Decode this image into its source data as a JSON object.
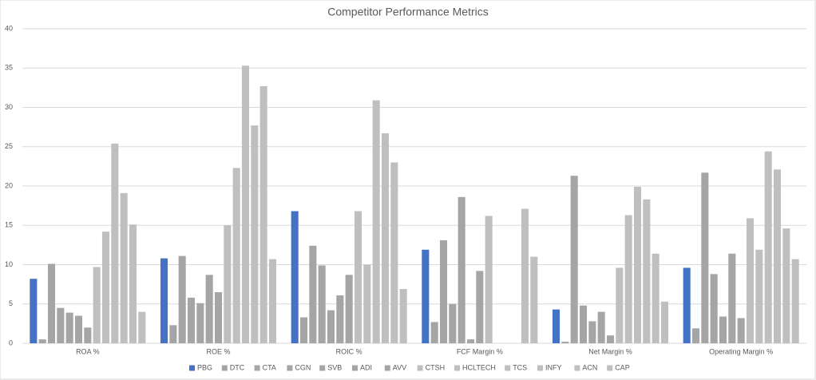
{
  "chart_data": {
    "type": "bar",
    "title": "Competitor Performance Metrics",
    "categories": [
      "ROA %",
      "ROE %",
      "ROIC %",
      "FCF Margin %",
      "Net Margin %",
      "Operating Margin %"
    ],
    "series": [
      {
        "name": "PBG",
        "color": "#4472c4",
        "values": [
          8.2,
          10.8,
          16.8,
          11.9,
          4.3,
          9.6
        ]
      },
      {
        "name": "DTC",
        "color": "#a5a5a5",
        "values": [
          0.5,
          2.3,
          3.3,
          2.7,
          0.2,
          1.9
        ]
      },
      {
        "name": "CTA",
        "color": "#a5a5a5",
        "values": [
          10.1,
          11.1,
          12.4,
          13.1,
          21.3,
          21.7
        ]
      },
      {
        "name": "CGN",
        "color": "#a5a5a5",
        "values": [
          4.5,
          5.8,
          9.9,
          5.0,
          4.8,
          8.8
        ]
      },
      {
        "name": "SVB",
        "color": "#a5a5a5",
        "values": [
          3.9,
          5.1,
          4.2,
          18.6,
          2.8,
          3.4
        ]
      },
      {
        "name": "ADI",
        "color": "#a5a5a5",
        "values": [
          3.5,
          8.7,
          6.1,
          0.5,
          4.0,
          11.4
        ]
      },
      {
        "name": "AVV",
        "color": "#a5a5a5",
        "values": [
          2.0,
          6.5,
          8.7,
          9.2,
          1.0,
          3.2
        ]
      },
      {
        "name": "CTSH",
        "color": "#bfbfbf",
        "values": [
          9.7,
          15.0,
          16.8,
          16.2,
          9.6,
          15.9
        ]
      },
      {
        "name": "HCLTECH",
        "color": "#bfbfbf",
        "values": [
          14.2,
          22.3,
          10.0,
          null,
          16.3,
          11.9
        ]
      },
      {
        "name": "TCS",
        "color": "#bfbfbf",
        "values": [
          25.4,
          35.3,
          30.9,
          null,
          19.9,
          24.4
        ]
      },
      {
        "name": "INFY",
        "color": "#bfbfbf",
        "values": [
          19.1,
          27.7,
          26.7,
          null,
          18.3,
          22.1
        ]
      },
      {
        "name": "ACN",
        "color": "#bfbfbf",
        "values": [
          15.1,
          32.7,
          23.0,
          17.1,
          11.4,
          14.6
        ]
      },
      {
        "name": "CAP",
        "color": "#bfbfbf",
        "values": [
          4.0,
          10.7,
          6.9,
          11.0,
          5.3,
          10.7
        ]
      }
    ],
    "ylim": [
      0,
      40
    ],
    "yticks": [
      0,
      5,
      10,
      15,
      20,
      25,
      30,
      35,
      40
    ],
    "grid": true,
    "legend": "bottom"
  }
}
